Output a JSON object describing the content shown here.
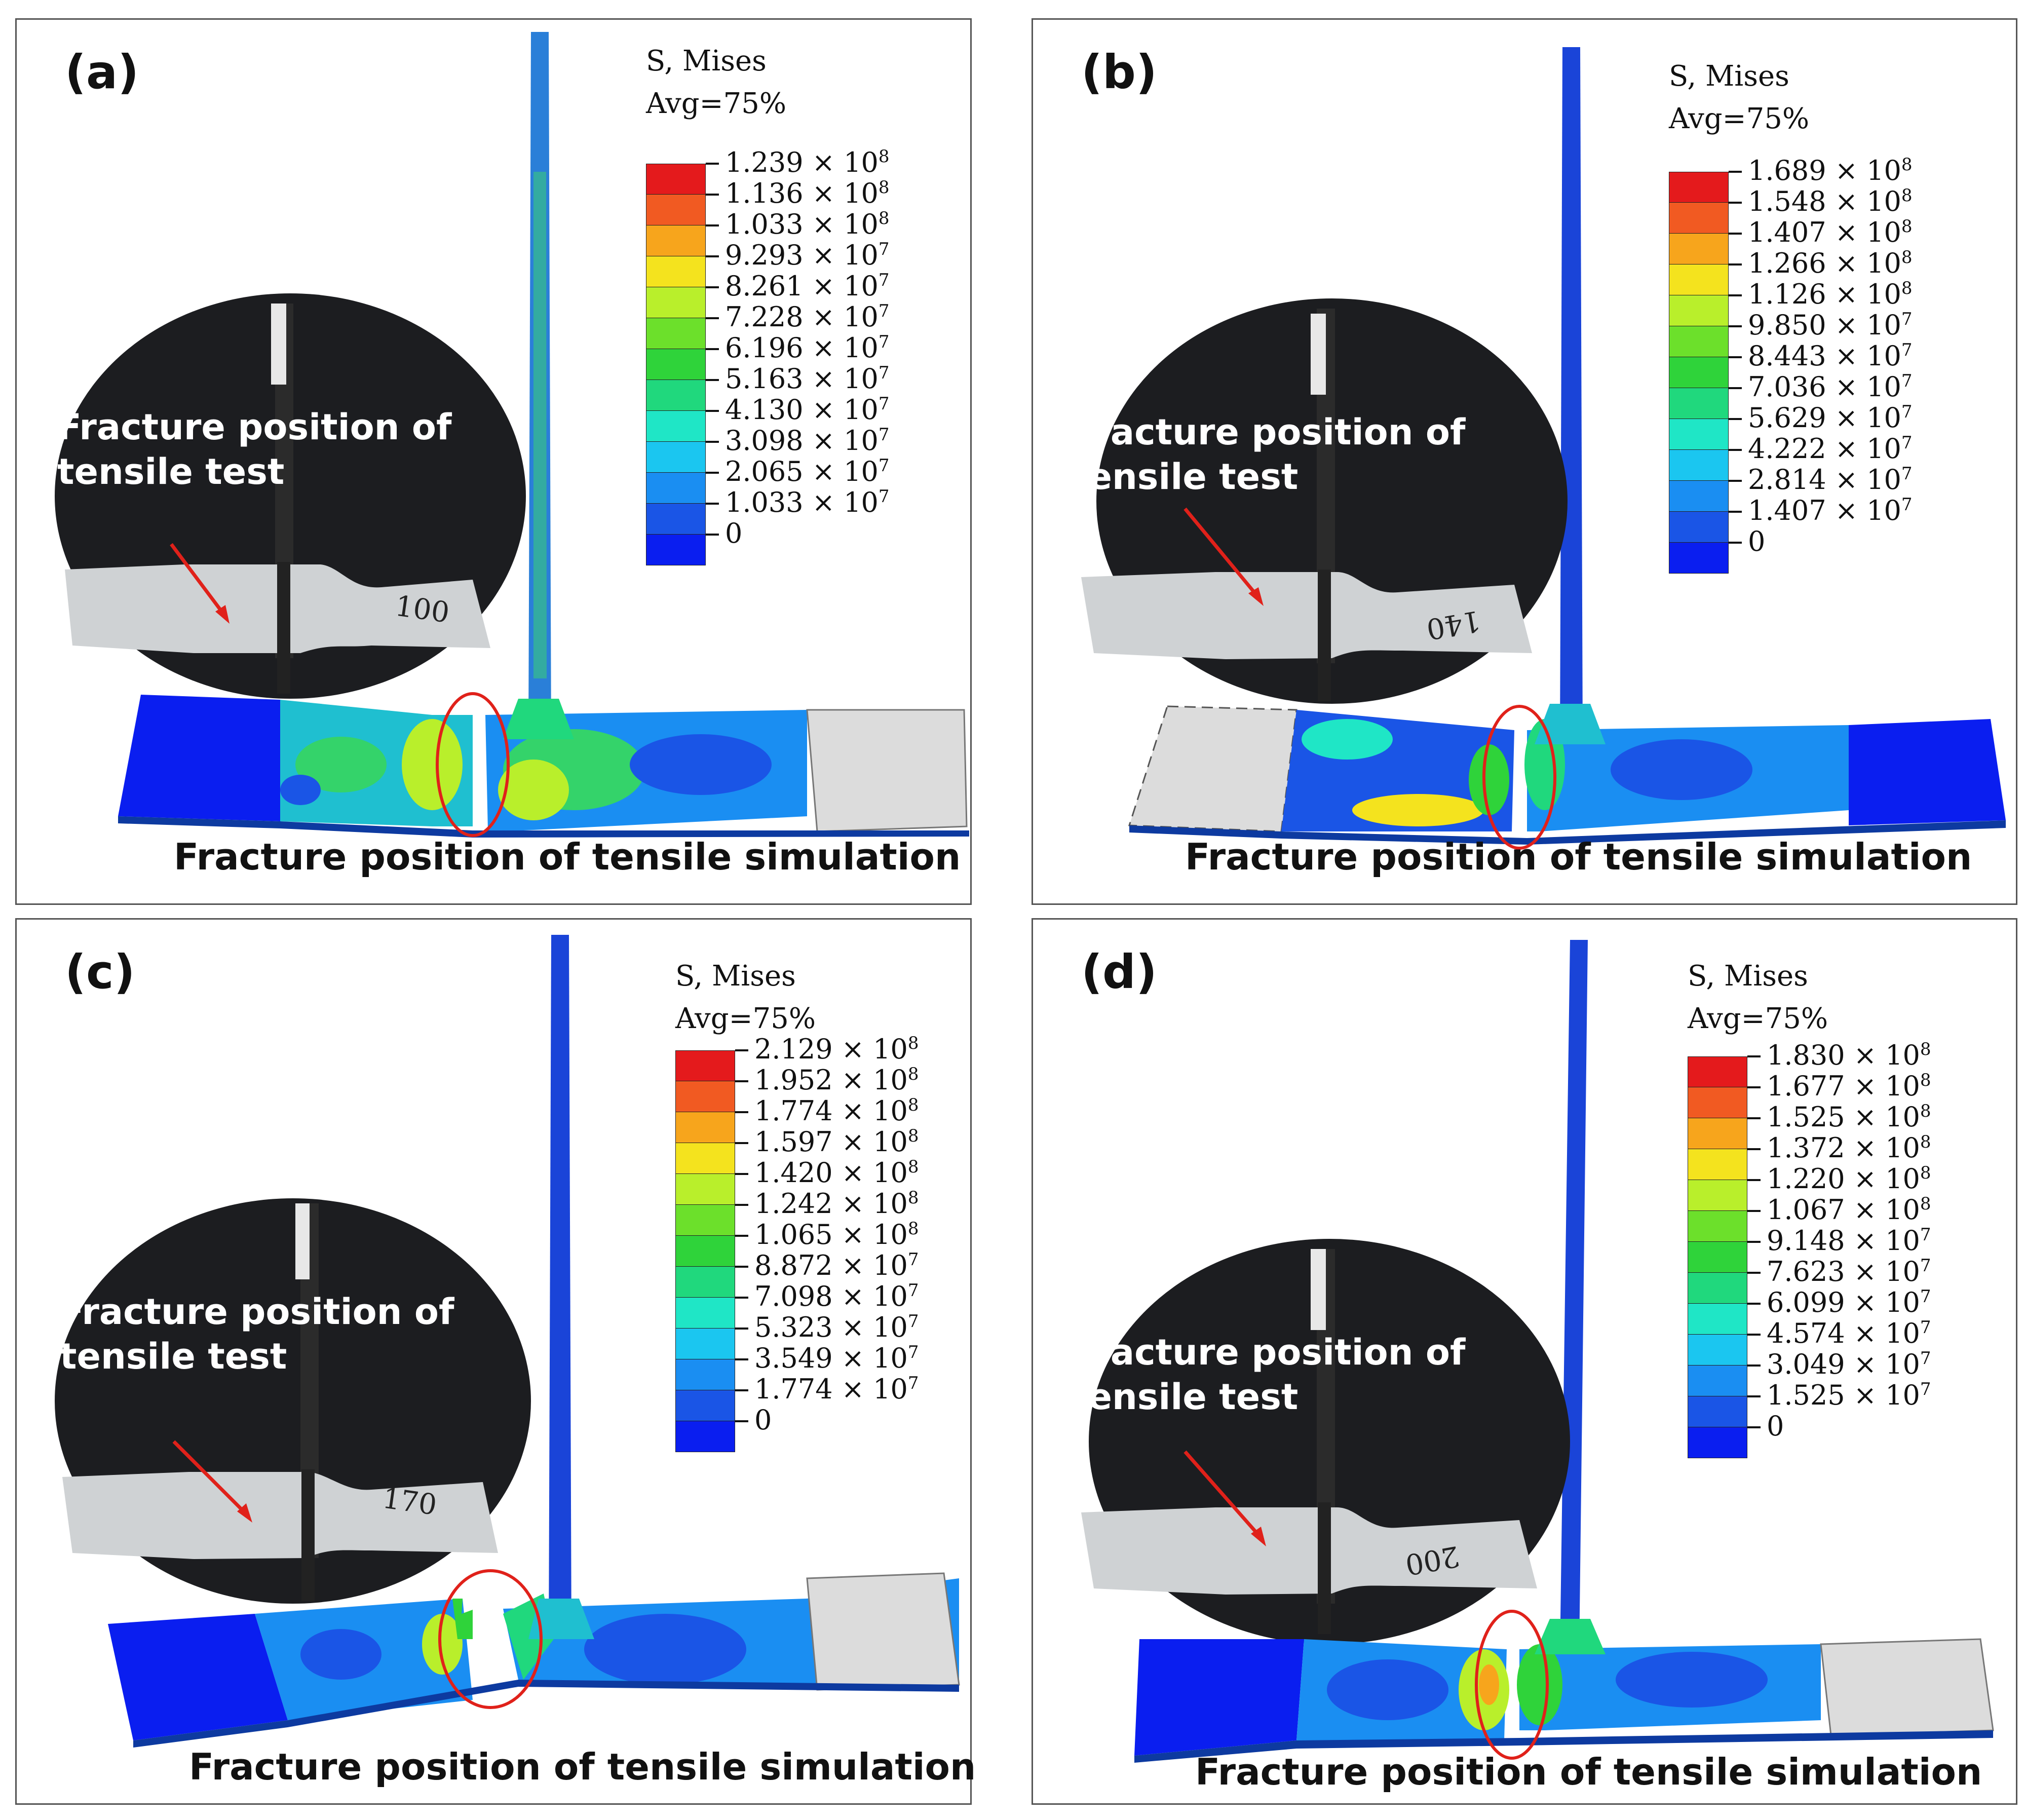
{
  "legend_title_line1": "S, Mises",
  "legend_title_line2": "Avg=75%",
  "test_annotation_line1": "Fracture position of",
  "test_annotation_line2": "tensile test",
  "simulation_caption": "Fracture position of tensile simulation",
  "colors": {
    "scale": [
      "#e41a1c",
      "#f15a22",
      "#f7a51c",
      "#f4e31e",
      "#b9ef2b",
      "#6ce02b",
      "#2fd33a",
      "#20d87d",
      "#1fe6c6",
      "#1bc6f0",
      "#1a8ef2",
      "#1a55e6",
      "#0a1ef0"
    ],
    "ring": "#e0211a",
    "arrow": "#e0211a",
    "grip_gray": "#dcdcdc"
  },
  "panels": [
    {
      "label": "(a)",
      "photo_mark": "100",
      "legend_values": [
        {
          "m": "1.239",
          "e": "8"
        },
        {
          "m": "1.136",
          "e": "8"
        },
        {
          "m": "1.033",
          "e": "8"
        },
        {
          "m": "9.293",
          "e": "7"
        },
        {
          "m": "8.261",
          "e": "7"
        },
        {
          "m": "7.228",
          "e": "7"
        },
        {
          "m": "6.196",
          "e": "7"
        },
        {
          "m": "5.163",
          "e": "7"
        },
        {
          "m": "4.130",
          "e": "7"
        },
        {
          "m": "3.098",
          "e": "7"
        },
        {
          "m": "2.065",
          "e": "7"
        },
        {
          "m": "1.033",
          "e": "7"
        },
        {
          "m": "0",
          "e": ""
        }
      ]
    },
    {
      "label": "(b)",
      "photo_mark": "140",
      "legend_values": [
        {
          "m": "1.689",
          "e": "8"
        },
        {
          "m": "1.548",
          "e": "8"
        },
        {
          "m": "1.407",
          "e": "8"
        },
        {
          "m": "1.266",
          "e": "8"
        },
        {
          "m": "1.126",
          "e": "8"
        },
        {
          "m": "9.850",
          "e": "7"
        },
        {
          "m": "8.443",
          "e": "7"
        },
        {
          "m": "7.036",
          "e": "7"
        },
        {
          "m": "5.629",
          "e": "7"
        },
        {
          "m": "4.222",
          "e": "7"
        },
        {
          "m": "2.814",
          "e": "7"
        },
        {
          "m": "1.407",
          "e": "7"
        },
        {
          "m": "0",
          "e": ""
        }
      ]
    },
    {
      "label": "(c)",
      "photo_mark": "170",
      "legend_values": [
        {
          "m": "2.129",
          "e": "8"
        },
        {
          "m": "1.952",
          "e": "8"
        },
        {
          "m": "1.774",
          "e": "8"
        },
        {
          "m": "1.597",
          "e": "8"
        },
        {
          "m": "1.420",
          "e": "8"
        },
        {
          "m": "1.242",
          "e": "8"
        },
        {
          "m": "1.065",
          "e": "8"
        },
        {
          "m": "8.872",
          "e": "7"
        },
        {
          "m": "7.098",
          "e": "7"
        },
        {
          "m": "5.323",
          "e": "7"
        },
        {
          "m": "3.549",
          "e": "7"
        },
        {
          "m": "1.774",
          "e": "7"
        },
        {
          "m": "0",
          "e": ""
        }
      ]
    },
    {
      "label": "(d)",
      "photo_mark": "200",
      "legend_values": [
        {
          "m": "1.830",
          "e": "8"
        },
        {
          "m": "1.677",
          "e": "8"
        },
        {
          "m": "1.525",
          "e": "8"
        },
        {
          "m": "1.372",
          "e": "8"
        },
        {
          "m": "1.220",
          "e": "8"
        },
        {
          "m": "1.067",
          "e": "8"
        },
        {
          "m": "9.148",
          "e": "7"
        },
        {
          "m": "7.623",
          "e": "7"
        },
        {
          "m": "6.099",
          "e": "7"
        },
        {
          "m": "4.574",
          "e": "7"
        },
        {
          "m": "3.049",
          "e": "7"
        },
        {
          "m": "1.525",
          "e": "7"
        },
        {
          "m": "0",
          "e": ""
        }
      ]
    }
  ]
}
